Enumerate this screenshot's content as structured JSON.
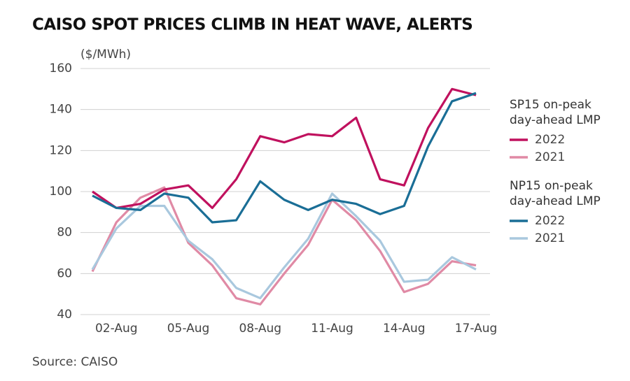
{
  "chart_data": {
    "type": "line",
    "title": "CAISO SPOT PRICES CLIMB IN HEAT WAVE, ALERTS",
    "y_label": "($/MWh)",
    "source": "Source: CAISO",
    "categories": [
      null,
      "02-Aug",
      null,
      null,
      "05-Aug",
      null,
      null,
      "08-Aug",
      null,
      null,
      "11-Aug",
      null,
      null,
      "14-Aug",
      null,
      null,
      "17-Aug"
    ],
    "ylim": [
      40,
      160
    ],
    "yticks": [
      40,
      60,
      80,
      100,
      120,
      140,
      160
    ],
    "grid": true,
    "groups": [
      {
        "title": [
          "SP15 on-peak",
          "day-ahead LMP"
        ],
        "series": [
          {
            "name": "2022",
            "color": "#c0115e",
            "values": [
              100,
              92,
              94,
              101,
              103,
              92,
              106,
              127,
              124,
              128,
              127,
              136,
              106,
              103,
              131,
              150,
              147
            ]
          },
          {
            "name": "2021",
            "color": "#e08aa5",
            "values": [
              61,
              85,
              97,
              102,
              75,
              64,
              48,
              45,
              60,
              74,
              96,
              86,
              71,
              51,
              55,
              66,
              64
            ]
          }
        ]
      },
      {
        "title": [
          "NP15 on-peak",
          "day-ahead LMP"
        ],
        "series": [
          {
            "name": "2022",
            "color": "#1a6e96",
            "values": [
              98,
              92,
              91,
              99,
              97,
              85,
              86,
              105,
              96,
              91,
              96,
              94,
              89,
              93,
              122,
              144,
              148
            ]
          },
          {
            "name": "2021",
            "color": "#a9c8de",
            "values": [
              62,
              82,
              93,
              93,
              76,
              67,
              53,
              48,
              63,
              77,
              99,
              88,
              76,
              56,
              57,
              68,
              62
            ]
          }
        ]
      }
    ]
  }
}
